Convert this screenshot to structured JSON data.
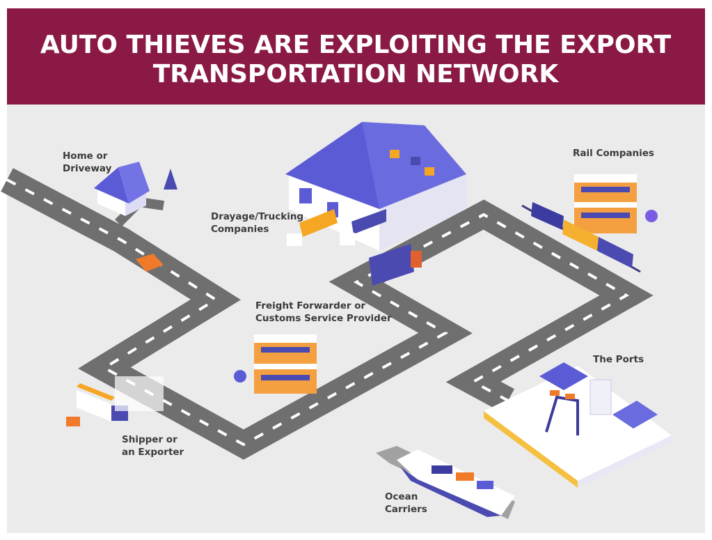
{
  "header": {
    "title_lines": [
      "AUTO THIEVES ARE EXPLOITING THE EXPORT",
      "TRANSPORTATION NETWORK"
    ]
  },
  "nodes": [
    {
      "lines": [
        "Home or",
        "Driveway"
      ]
    },
    {
      "lines": [
        "Drayage/Trucking",
        "Companies"
      ]
    },
    {
      "lines": [
        "Rail Companies"
      ]
    },
    {
      "lines": [
        "Freight Forwarder or",
        "Customs Service Provider"
      ]
    },
    {
      "lines": [
        "The Ports"
      ]
    },
    {
      "lines": [
        "Shipper or",
        "an Exporter"
      ]
    },
    {
      "lines": [
        "Ocean",
        "Carriers"
      ]
    }
  ]
}
